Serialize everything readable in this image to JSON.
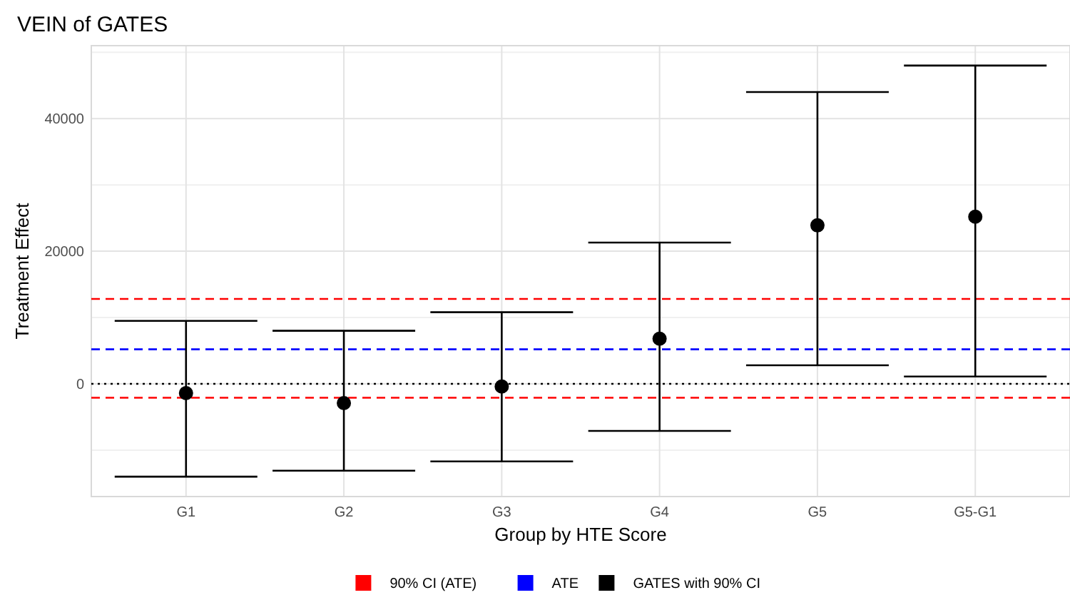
{
  "chart_data": {
    "type": "scatter",
    "title": "VEIN of GATES",
    "xlabel": "Group by HTE Score",
    "ylabel": "Treatment Effect",
    "categories": [
      "G1",
      "G2",
      "G3",
      "G4",
      "G5",
      "G5-G1"
    ],
    "series": [
      {
        "name": "GATES with 90% CI",
        "color": "#000000",
        "values": [
          -1400,
          -2900,
          -400,
          6800,
          23900,
          25200
        ],
        "errors": [
          [
            -14000,
            9500
          ],
          [
            -13100,
            8000
          ],
          [
            -11700,
            10800
          ],
          [
            -7100,
            21300
          ],
          [
            2800,
            44000
          ],
          [
            1100,
            48000
          ]
        ]
      }
    ],
    "ylim": [
      -17000,
      51000
    ],
    "yticks": [
      0,
      20000,
      40000
    ],
    "grid": true,
    "legend": "bottom",
    "marker": "circle",
    "ref_lines": [
      {
        "axis": "y",
        "value": 12800,
        "label": "90% CI (ATE)",
        "color": "#ff0000",
        "line_style": "dashed"
      },
      {
        "axis": "y",
        "value": -2100,
        "color": "#ff0000",
        "line_style": "dashed"
      },
      {
        "axis": "y",
        "value": 5200,
        "label": "ATE",
        "color": "#0000ff",
        "line_style": "dashed"
      },
      {
        "axis": "y",
        "value": 0,
        "color": "#000000",
        "line_style": "dotted"
      }
    ]
  }
}
